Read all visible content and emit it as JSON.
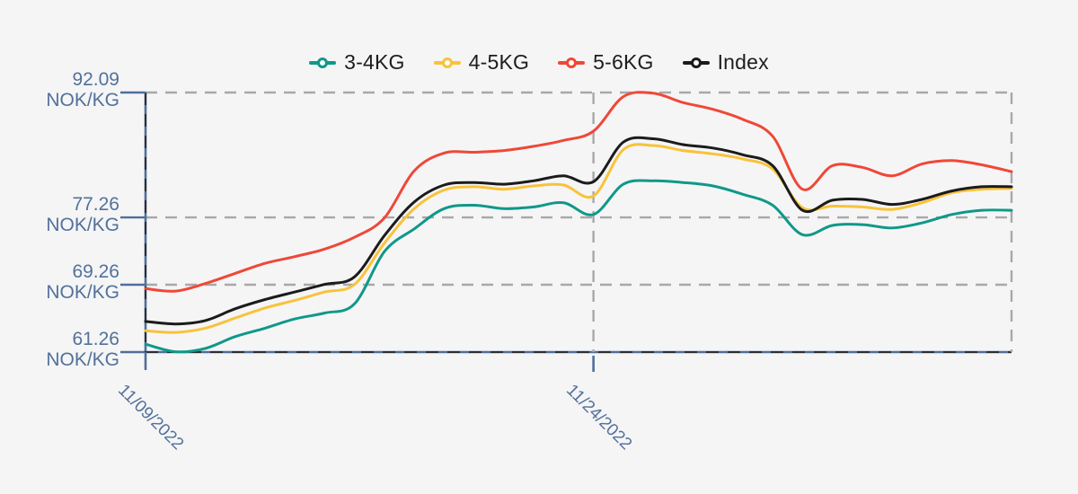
{
  "chart_data": {
    "type": "line",
    "title": "",
    "unit": "NOK/KG",
    "legend_position": "top-center",
    "grid": "dashed",
    "ylim": [
      61.26,
      92.09
    ],
    "x_point_count": 30,
    "x_ticks": [
      {
        "label": "11/09/2022",
        "index": 0
      },
      {
        "label": "11/24/2022",
        "index": 15
      }
    ],
    "y_ticks": [
      {
        "value": 92.09,
        "label": "92.09",
        "unit": "NOK/KG"
      },
      {
        "value": 77.26,
        "label": "77.26",
        "unit": "NOK/KG"
      },
      {
        "value": 69.26,
        "label": "69.26",
        "unit": "NOK/KG"
      },
      {
        "value": 61.26,
        "label": "61.26",
        "unit": "NOK/KG"
      }
    ],
    "series": [
      {
        "name": "3-4KG",
        "color": "#109889",
        "values": [
          62.2,
          61.3,
          61.7,
          63.1,
          64.1,
          65.2,
          65.9,
          67.0,
          73.2,
          75.9,
          78.3,
          78.7,
          78.3,
          78.5,
          79.0,
          77.6,
          81.2,
          81.6,
          81.4,
          81.0,
          80.0,
          78.7,
          75.2,
          76.3,
          76.4,
          76.0,
          76.6,
          77.6,
          78.1,
          78.1
        ]
      },
      {
        "name": "4-5KG",
        "color": "#f8c33a",
        "values": [
          63.8,
          63.6,
          64.1,
          65.3,
          66.5,
          67.4,
          68.4,
          69.3,
          74.2,
          78.3,
          80.5,
          80.9,
          80.6,
          81.0,
          81.1,
          79.8,
          85.3,
          85.8,
          85.2,
          84.8,
          84.2,
          83.0,
          78.4,
          78.6,
          78.5,
          78.2,
          79.0,
          80.2,
          80.6,
          80.7
        ]
      },
      {
        "name": "5-6KG",
        "color": "#ef4837",
        "values": [
          68.8,
          68.5,
          69.4,
          70.6,
          71.8,
          72.6,
          73.5,
          74.9,
          77.2,
          82.8,
          84.9,
          85.0,
          85.2,
          85.7,
          86.4,
          87.5,
          91.6,
          92.0,
          90.9,
          90.1,
          88.9,
          86.9,
          80.6,
          83.4,
          83.2,
          82.2,
          83.6,
          84.0,
          83.5,
          82.7
        ]
      },
      {
        "name": "Index",
        "color": "#1b1b1b",
        "values": [
          64.9,
          64.6,
          65.0,
          66.4,
          67.5,
          68.4,
          69.3,
          70.2,
          75.1,
          79.1,
          81.1,
          81.4,
          81.2,
          81.6,
          82.2,
          81.5,
          86.2,
          86.6,
          85.9,
          85.5,
          84.7,
          83.4,
          78.1,
          79.3,
          79.4,
          78.8,
          79.4,
          80.4,
          80.9,
          80.9
        ]
      }
    ]
  },
  "colors": {
    "background": "#f5f5f6",
    "axis": "#4f6f99",
    "axis_text": "#53719a",
    "gridline": "#a8a8a8",
    "dark_dash": "#2e2e2e"
  }
}
